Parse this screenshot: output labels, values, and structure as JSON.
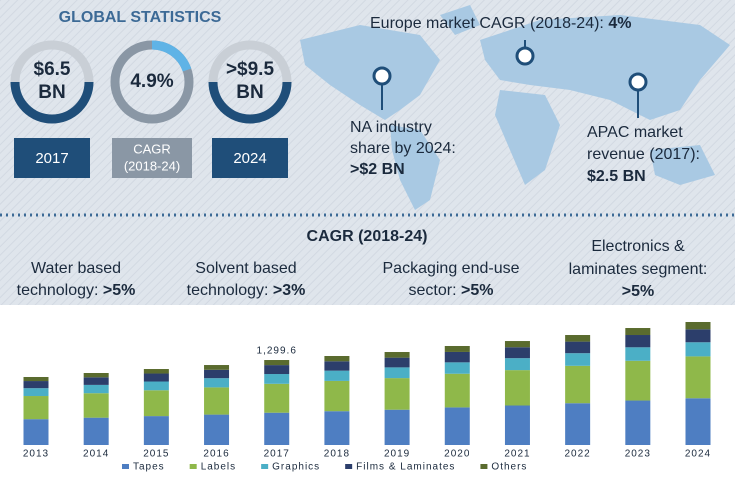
{
  "header": {
    "title": "GLOBAL STATISTICS"
  },
  "stats": [
    {
      "value": [
        "$6.5",
        "BN"
      ],
      "label": [
        "2017"
      ]
    },
    {
      "value": [
        "4.9%"
      ],
      "label": [
        "CAGR",
        "(2018-24)"
      ]
    },
    {
      "value": [
        ">$9.5",
        "BN"
      ],
      "label": [
        "2024"
      ]
    }
  ],
  "map": {
    "europe": {
      "text": "Europe market CAGR (2018-24): ",
      "bold": "4%"
    },
    "na": {
      "lines": [
        "NA industry",
        "share by 2024:"
      ],
      "bold": ">$2 BN"
    },
    "apac": {
      "lines": [
        "APAC market",
        "revenue (2017):"
      ],
      "bold": "$2.5 BN"
    }
  },
  "cagr": {
    "title": "CAGR (2018-24)",
    "items": [
      {
        "lines": [
          "Water based",
          "technology: "
        ],
        "bold": ">5%"
      },
      {
        "lines": [
          "Solvent based",
          "technology: "
        ],
        "bold": ">3%"
      },
      {
        "lines": [
          "Packaging end-use",
          "sector: "
        ],
        "bold": ">5%"
      },
      {
        "lines": [
          "Electronics &",
          "laminates segment:"
        ],
        "bold": ">5%"
      }
    ]
  },
  "chart_data": {
    "type": "stacked_bar",
    "categories": [
      "2013",
      "2014",
      "2015",
      "2016",
      "2017",
      "2018",
      "2019",
      "2020",
      "2021",
      "2022",
      "2023",
      "2024"
    ],
    "series": [
      {
        "name": "Tapes",
        "color": "#4e7ec2",
        "values": [
          395,
          418,
          442,
          465,
          494,
          517,
          540,
          575,
          604,
          639,
          680,
          715
        ]
      },
      {
        "name": "Labels",
        "color": "#8fb84a",
        "values": [
          354,
          374,
          395,
          416,
          442,
          463,
          483,
          515,
          541,
          572,
          608,
          640
        ]
      },
      {
        "name": "Graphics",
        "color": "#4bafc6",
        "values": [
          120,
          127,
          134,
          141,
          149.4,
          157,
          164,
          174,
          183,
          193,
          206,
          216
        ]
      },
      {
        "name": "Films & Laminates",
        "color": "#2c3e6b",
        "values": [
          109,
          116,
          122,
          128,
          136.5,
          143,
          149,
          159,
          167,
          177,
          188,
          198
        ]
      },
      {
        "name": "Others",
        "color": "#5a6b2e",
        "values": [
          62,
          66,
          69,
          73,
          77.7,
          81,
          86,
          91,
          95,
          101,
          107,
          112
        ]
      }
    ],
    "annotation": {
      "label": "1,299.6",
      "value": 1299.6,
      "category": "2017"
    }
  }
}
